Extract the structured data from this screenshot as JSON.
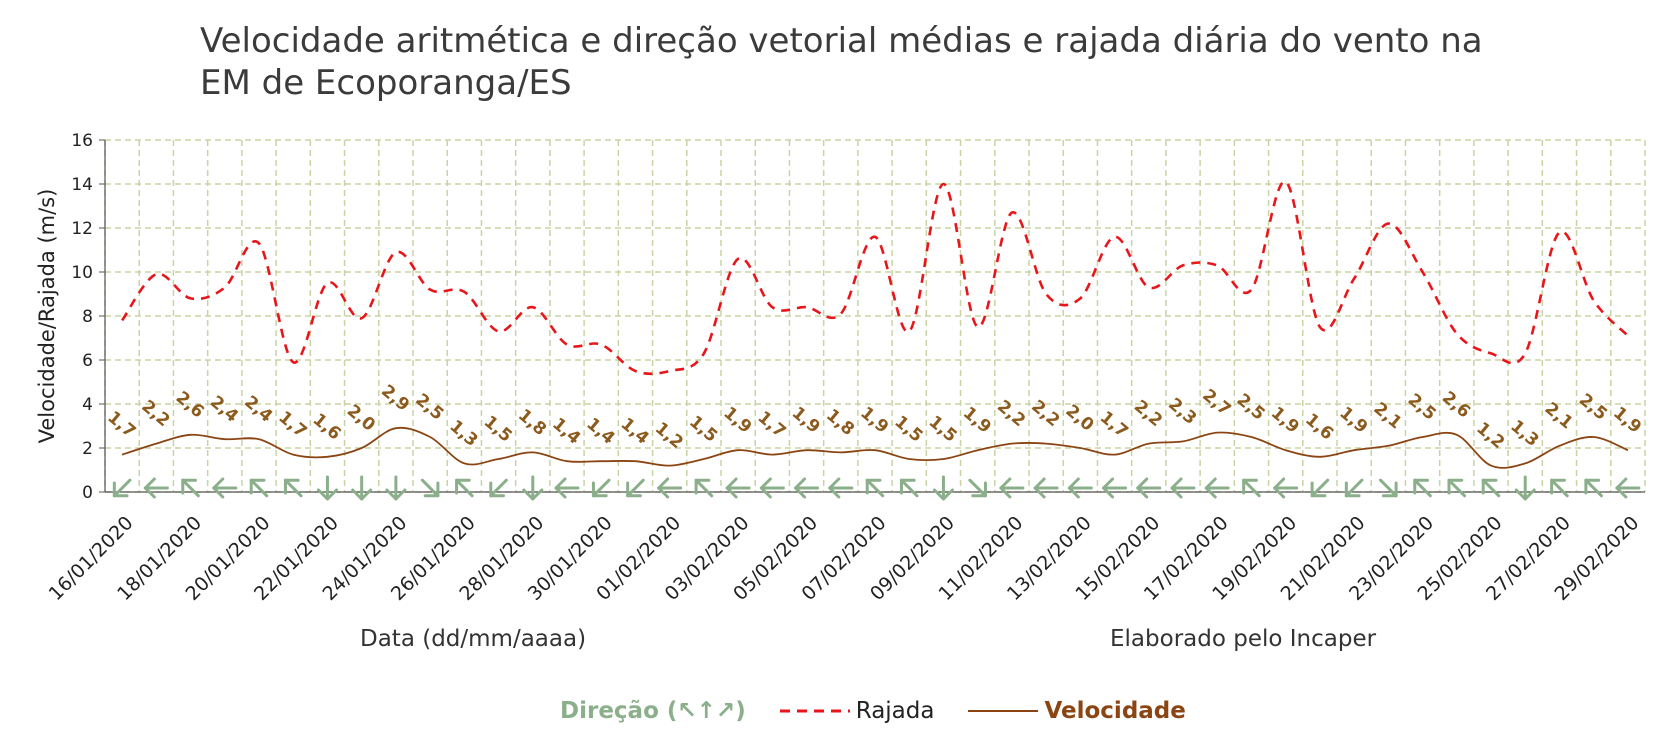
{
  "chart_data": {
    "type": "line",
    "title": "Velocidade aritmética e direção vetorial médias e rajada diária do vento na EM de Ecoporanga/ES",
    "xlabel": "Data (dd/mm/aaaa)",
    "ylabel": "Velocidade/Rajada (m/s)",
    "credit": "Elaborado pelo Incaper",
    "ylim": [
      0,
      16
    ],
    "yticks": [
      0,
      2,
      4,
      6,
      8,
      10,
      12,
      14,
      16
    ],
    "grid": true,
    "legend_placement": "bottom",
    "x": [
      "16/01/2020",
      "17/01/2020",
      "18/01/2020",
      "19/01/2020",
      "20/01/2020",
      "21/01/2020",
      "22/01/2020",
      "23/01/2020",
      "24/01/2020",
      "25/01/2020",
      "26/01/2020",
      "27/01/2020",
      "28/01/2020",
      "29/01/2020",
      "30/01/2020",
      "31/01/2020",
      "01/02/2020",
      "02/02/2020",
      "03/02/2020",
      "04/02/2020",
      "05/02/2020",
      "06/02/2020",
      "07/02/2020",
      "08/02/2020",
      "09/02/2020",
      "10/02/2020",
      "11/02/2020",
      "12/02/2020",
      "13/02/2020",
      "14/02/2020",
      "15/02/2020",
      "16/02/2020",
      "17/02/2020",
      "18/02/2020",
      "19/02/2020",
      "20/02/2020",
      "21/02/2020",
      "22/02/2020",
      "23/02/2020",
      "24/02/2020",
      "25/02/2020",
      "26/02/2020",
      "27/02/2020",
      "28/02/2020",
      "29/02/2020"
    ],
    "xtick_labels": [
      "16/01/2020",
      "18/01/2020",
      "20/01/2020",
      "22/01/2020",
      "24/01/2020",
      "26/01/2020",
      "28/01/2020",
      "30/01/2020",
      "01/02/2020",
      "03/02/2020",
      "05/02/2020",
      "07/02/2020",
      "09/02/2020",
      "11/02/2020",
      "13/02/2020",
      "15/02/2020",
      "17/02/2020",
      "19/02/2020",
      "21/02/2020",
      "23/02/2020",
      "25/02/2020",
      "27/02/2020",
      "29/02/2020"
    ],
    "series": [
      {
        "name": "Rajada",
        "color": "#e8161b",
        "style": "dashed",
        "values": [
          7.8,
          9.9,
          8.8,
          9.3,
          11.3,
          5.9,
          9.5,
          7.9,
          10.9,
          9.2,
          9.1,
          7.3,
          8.4,
          6.7,
          6.7,
          5.5,
          5.5,
          6.3,
          10.6,
          8.4,
          8.4,
          8.1,
          11.6,
          7.3,
          14.0,
          7.5,
          12.7,
          9.0,
          8.8,
          11.6,
          9.3,
          10.3,
          10.3,
          9.2,
          14.1,
          7.5,
          9.7,
          12.2,
          10.0,
          7.2,
          6.3,
          6.3,
          11.8,
          8.7,
          7.1
        ]
      },
      {
        "name": "Velocidade",
        "color": "#8b4513",
        "style": "solid",
        "values": [
          1.7,
          2.2,
          2.6,
          2.4,
          2.4,
          1.7,
          1.6,
          2.0,
          2.9,
          2.5,
          1.3,
          1.5,
          1.8,
          1.4,
          1.4,
          1.4,
          1.2,
          1.5,
          1.9,
          1.7,
          1.9,
          1.8,
          1.9,
          1.5,
          1.5,
          1.9,
          2.2,
          2.2,
          2.0,
          1.7,
          2.2,
          2.3,
          2.7,
          2.5,
          1.9,
          1.6,
          1.9,
          2.1,
          2.5,
          2.6,
          1.2,
          1.3,
          2.1,
          2.5,
          1.9
        ]
      }
    ],
    "speed_labels": [
      "1,7",
      "2,2",
      "2,6",
      "2,4",
      "2,4",
      "1,7",
      "1,6",
      "2,0",
      "2,9",
      "2,5",
      "1,3",
      "1,5",
      "1,8",
      "1,4",
      "1,4",
      "1,4",
      "1,2",
      "1,5",
      "1,9",
      "1,7",
      "1,9",
      "1,8",
      "1,9",
      "1,5",
      "1,5",
      "1,9",
      "2,2",
      "2,2",
      "2,0",
      "1,7",
      "2,2",
      "2,3",
      "2,7",
      "2,5",
      "1,9",
      "1,6",
      "1,9",
      "2,1",
      "2,5",
      "2,6",
      "1,2",
      "1,3",
      "2,1",
      "2,5",
      "1,9"
    ],
    "direction_deg": [
      225,
      270,
      315,
      270,
      315,
      315,
      180,
      180,
      180,
      135,
      315,
      225,
      180,
      270,
      225,
      225,
      270,
      315,
      270,
      270,
      270,
      270,
      315,
      315,
      180,
      135,
      270,
      270,
      270,
      270,
      270,
      270,
      270,
      315,
      270,
      225,
      225,
      135,
      315,
      315,
      315,
      180,
      315,
      315,
      270
    ],
    "direction_color": "#8aaf8a"
  },
  "legend": {
    "direction_label": "Direção (↖↑↗)",
    "gust_label": "Rajada",
    "speed_label": "Velocidade"
  }
}
